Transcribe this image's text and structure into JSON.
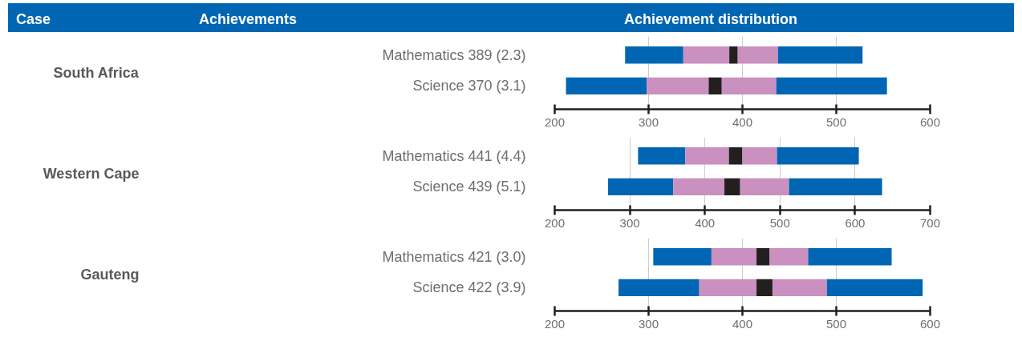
{
  "chart_data": [
    {
      "type": "bar",
      "orientation": "horizontal",
      "ylabel": "South Africa",
      "annotations": [
        "Case",
        "Achievements",
        "Achievement distribution"
      ],
      "categories": [
        "Mathematics 389 (2.3)",
        "Science 370 (3.1)"
      ],
      "series": [
        {
          "color": "#0066b3",
          "base": [
            275,
            212
          ],
          "values": [
            62,
            86
          ]
        },
        {
          "color": "#c990c0",
          "base": [
            337,
            298
          ],
          "values": [
            49,
            66
          ]
        },
        {
          "color": "#231f20",
          "base": [
            386,
            364
          ],
          "values": [
            9,
            14
          ]
        },
        {
          "color": "#c990c0",
          "base": [
            395,
            378
          ],
          "values": [
            43,
            58
          ]
        },
        {
          "color": "#0066b3",
          "base": [
            438,
            436
          ],
          "values": [
            90,
            118
          ]
        }
      ],
      "xlim": [
        200,
        600
      ],
      "xticks": [
        200,
        300,
        400,
        500,
        600
      ],
      "grid": "x"
    },
    {
      "type": "bar",
      "orientation": "horizontal",
      "ylabel": "Western Cape",
      "categories": [
        "Mathematics 441 (4.4)",
        "Science 439 (5.1)"
      ],
      "series": [
        {
          "color": "#0066b3",
          "base": [
            311,
            271
          ],
          "values": [
            63,
            87
          ]
        },
        {
          "color": "#c990c0",
          "base": [
            374,
            358
          ],
          "values": [
            58,
            68
          ]
        },
        {
          "color": "#231f20",
          "base": [
            432,
            426
          ],
          "values": [
            18,
            21
          ]
        },
        {
          "color": "#c990c0",
          "base": [
            450,
            447
          ],
          "values": [
            46,
            65
          ]
        },
        {
          "color": "#0066b3",
          "base": [
            496,
            512
          ],
          "values": [
            109,
            124
          ]
        }
      ],
      "xlim": [
        200,
        700
      ],
      "xticks": [
        200,
        300,
        400,
        500,
        600,
        700
      ],
      "grid": "x"
    },
    {
      "type": "bar",
      "orientation": "horizontal",
      "ylabel": "Gauteng",
      "categories": [
        "Mathematics 421 (3.0)",
        "Science 422 (3.9)"
      ],
      "series": [
        {
          "color": "#0066b3",
          "base": [
            305,
            268
          ],
          "values": [
            62,
            86
          ]
        },
        {
          "color": "#c990c0",
          "base": [
            367,
            354
          ],
          "values": [
            48,
            61
          ]
        },
        {
          "color": "#231f20",
          "base": [
            415,
            415
          ],
          "values": [
            14,
            17
          ]
        },
        {
          "color": "#c990c0",
          "base": [
            429,
            432
          ],
          "values": [
            41,
            58
          ]
        },
        {
          "color": "#0066b3",
          "base": [
            470,
            490
          ],
          "values": [
            89,
            102
          ]
        }
      ],
      "xlim": [
        200,
        600
      ],
      "xticks": [
        200,
        300,
        400,
        500,
        600
      ],
      "grid": "x"
    }
  ]
}
